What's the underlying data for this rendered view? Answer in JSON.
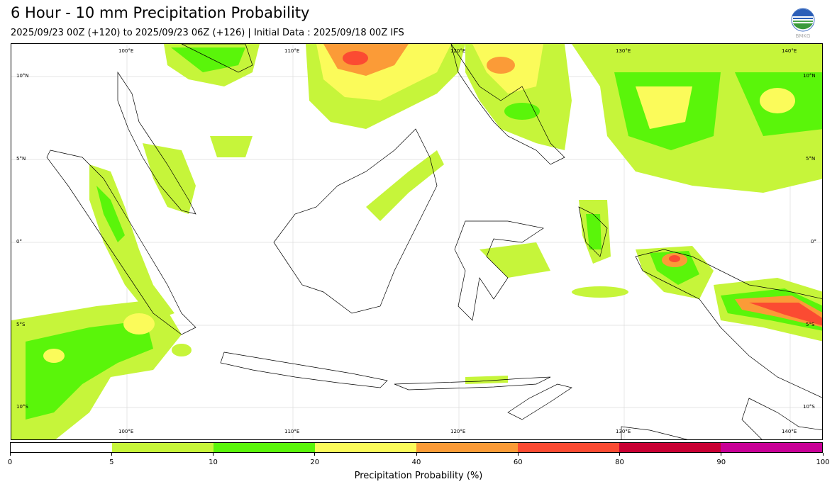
{
  "header": {
    "title": "6 Hour - 10 mm Precipitation Probability",
    "subtitle": "2025/09/23 00Z (+120) to 2025/09/23 06Z (+126) | Initial Data : 2025/09/18 00Z IFS",
    "logo_text": "BMKG"
  },
  "map": {
    "lat_labels": [
      "10°N",
      "5°N",
      "0°",
      "5°S",
      "10°S"
    ],
    "lon_labels": [
      "100°E",
      "110°E",
      "120°E",
      "130°E",
      "140°E"
    ]
  },
  "colorbar": {
    "label": "Precipitation Probability (%)",
    "ticks": [
      "0",
      "5",
      "10",
      "20",
      "40",
      "60",
      "80",
      "90",
      "100"
    ],
    "colors": [
      "#ffffff",
      "#c6f53a",
      "#5af50a",
      "#fbfb5a",
      "#fb9b37",
      "#fb4b32",
      "#c80032",
      "#c80096"
    ]
  }
}
